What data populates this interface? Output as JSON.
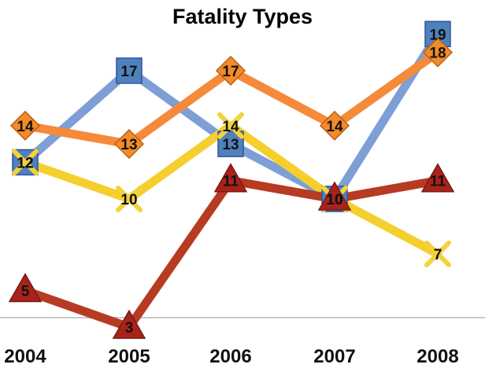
{
  "chart_data": {
    "type": "line",
    "title": "Fatality Types",
    "xlabel": "",
    "ylabel": "",
    "categories": [
      "2004",
      "2005",
      "2006",
      "2007",
      "2008"
    ],
    "ylim": [
      0,
      20
    ],
    "grid": false,
    "legend": "none",
    "series": [
      {
        "values": [
          12,
          17,
          13,
          10,
          19
        ],
        "color": "#7e9fd6",
        "marker": "square",
        "marker_color": "#4f81bd"
      },
      {
        "values": [
          14,
          13,
          17,
          14,
          18
        ],
        "color": "#f58a3a",
        "marker": "diamond",
        "marker_color": "#f28b2a"
      },
      {
        "values": [
          12,
          10,
          14,
          10,
          7
        ],
        "color": "#f4cf2e",
        "marker": "x",
        "marker_color": "#f4d23a"
      },
      {
        "values": [
          5,
          3,
          11,
          10,
          11
        ],
        "color": "#b73a22",
        "marker": "triangle",
        "marker_color": "#a8231a"
      }
    ]
  }
}
